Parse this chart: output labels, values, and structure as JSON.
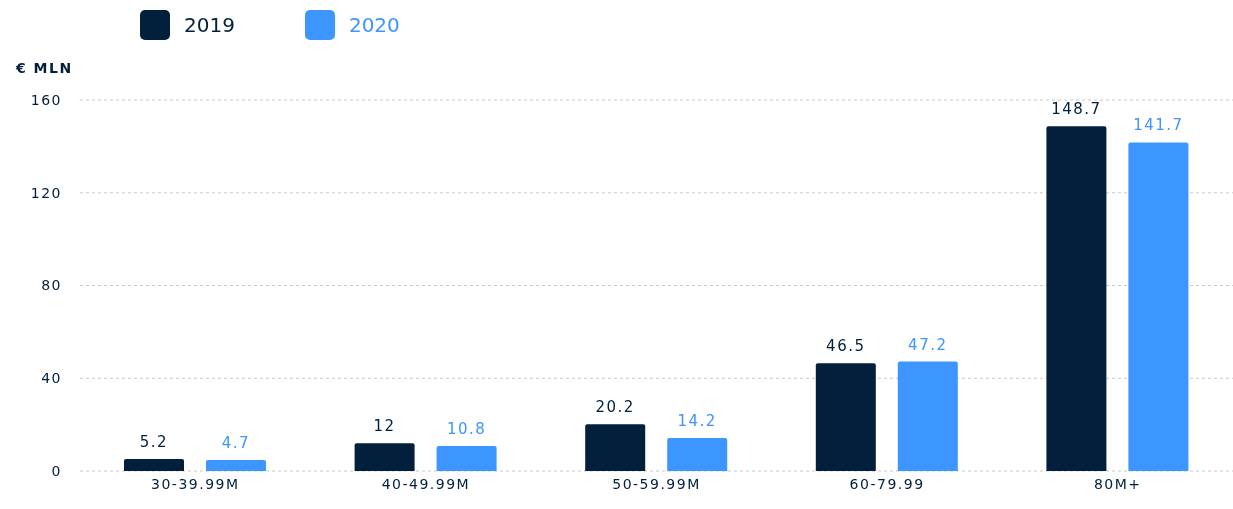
{
  "chart_data": {
    "type": "bar",
    "ylabel": "€ MLN",
    "categories": [
      "30-39.99M",
      "40-49.99M",
      "50-59.99M",
      "60-79.99",
      "80M+"
    ],
    "series": [
      {
        "name": "2019",
        "color": "#02203c",
        "values": [
          5.2,
          12,
          20.2,
          46.5,
          148.7
        ]
      },
      {
        "name": "2020",
        "color": "#3d95ff",
        "values": [
          4.7,
          10.8,
          14.2,
          47.2,
          141.7
        ]
      }
    ],
    "ylim": [
      0,
      160
    ],
    "yticks": [
      0,
      40,
      80,
      120,
      160
    ],
    "grid": "y",
    "legend": "top left",
    "data_labels": true
  }
}
